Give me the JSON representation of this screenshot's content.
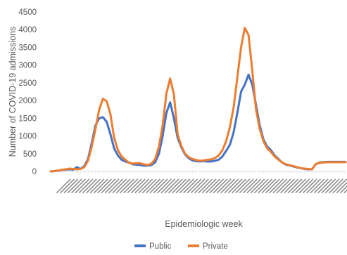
{
  "chart_data": {
    "type": "line",
    "xlabel": "Epidemiologic week",
    "ylabel": "Number of COVID-19 admissions",
    "ylim": [
      0,
      4500
    ],
    "yticks": [
      0,
      500,
      1000,
      1500,
      2000,
      2500,
      3000,
      3500,
      4000,
      4500
    ],
    "grid": false,
    "legend_position": "bottom-center",
    "x_count": 80,
    "series": [
      {
        "name": "Public",
        "color": "#4472C4",
        "values": [
          0,
          10,
          20,
          40,
          50,
          60,
          50,
          120,
          70,
          150,
          350,
          800,
          1300,
          1500,
          1530,
          1400,
          1050,
          650,
          450,
          330,
          280,
          250,
          200,
          190,
          180,
          160,
          160,
          180,
          260,
          500,
          1000,
          1650,
          1950,
          1500,
          950,
          680,
          480,
          370,
          310,
          290,
          280,
          290,
          280,
          280,
          300,
          330,
          420,
          580,
          750,
          1100,
          1650,
          2250,
          2450,
          2730,
          2450,
          1880,
          1300,
          900,
          700,
          600,
          450,
          350,
          250,
          190,
          170,
          140,
          110,
          90,
          70,
          60,
          60,
          200,
          250,
          260,
          270,
          270,
          270,
          270,
          270,
          270
        ]
      },
      {
        "name": "Private",
        "color": "#ED7D31",
        "values": [
          0,
          10,
          25,
          45,
          60,
          80,
          70,
          60,
          70,
          120,
          300,
          700,
          1200,
          1750,
          2050,
          1980,
          1620,
          950,
          600,
          420,
          330,
          240,
          220,
          230,
          230,
          200,
          180,
          220,
          350,
          700,
          1300,
          2200,
          2620,
          2180,
          1050,
          720,
          500,
          400,
          350,
          320,
          300,
          310,
          330,
          340,
          380,
          450,
          600,
          850,
          1250,
          1800,
          2650,
          3500,
          4050,
          3850,
          2850,
          1750,
          1200,
          850,
          650,
          550,
          420,
          330,
          250,
          200,
          180,
          150,
          120,
          90,
          80,
          70,
          60,
          210,
          240,
          250,
          260,
          260,
          260,
          260,
          260,
          260
        ]
      }
    ]
  }
}
